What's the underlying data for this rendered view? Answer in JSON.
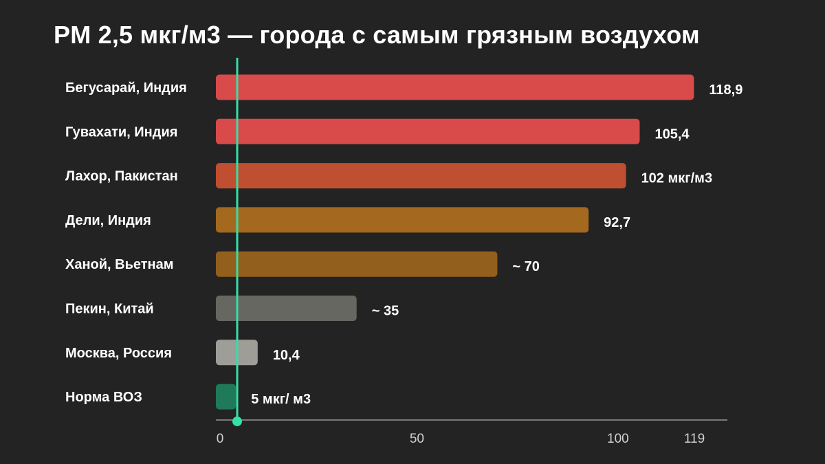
{
  "chart_data": {
    "type": "bar",
    "orientation": "horizontal",
    "title": "PM 2,5 мкг/м3 — города с самым грязным воздухом",
    "categories": [
      "Бегусарай, Индия",
      "Гувахати, Индия",
      "Лахор, Пакистан",
      "Дели, Индия",
      "Ханой, Вьетнам",
      "Пекин, Китай",
      "Москва, Россия",
      "Норма ВОЗ"
    ],
    "values": [
      118.9,
      105.4,
      102,
      92.7,
      70,
      35,
      10.4,
      5
    ],
    "value_labels": [
      "118,9",
      "105,4",
      "102 мкг/м3",
      "92,7",
      "~ 70",
      "~ 35",
      "10,4",
      "5 мкг/ м3"
    ],
    "bar_colors": [
      "#d94a4a",
      "#d94a4a",
      "#bf4f30",
      "#a4691e",
      "#935f1d",
      "#676762",
      "#9e9d98",
      "#1f7a5a"
    ],
    "reference_line": {
      "value": 5,
      "color": "#33e0a8"
    },
    "xlim": [
      0,
      119
    ],
    "x_ticks": [
      0,
      50,
      100,
      119
    ],
    "x_tick_labels": [
      "0",
      "50",
      "100",
      "119"
    ],
    "grid": false,
    "legend": "none"
  }
}
